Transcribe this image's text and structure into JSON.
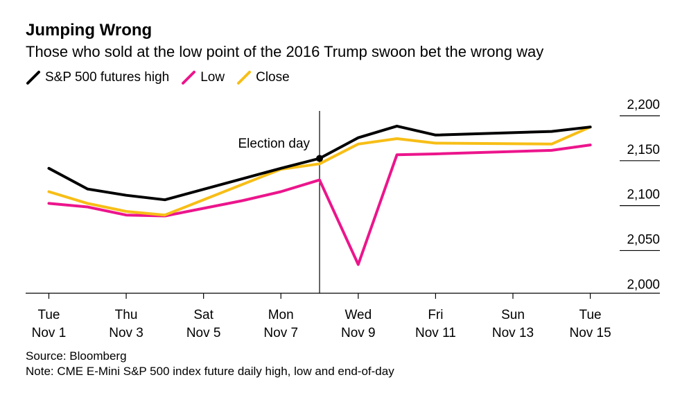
{
  "chart_data": {
    "type": "line",
    "title": "Jumping Wrong",
    "subtitle": "Those who sold at the low point of the 2016 Trump swoon bet the wrong way",
    "x_labels": [
      {
        "day": "Tue",
        "date": "Nov 1"
      },
      {
        "day": "Thu",
        "date": "Nov 3"
      },
      {
        "day": "Sat",
        "date": "Nov 5"
      },
      {
        "day": "Mon",
        "date": "Nov 7"
      },
      {
        "day": "Wed",
        "date": "Nov 9"
      },
      {
        "day": "Fri",
        "date": "Nov 11"
      },
      {
        "day": "Sun",
        "date": "Nov 13"
      },
      {
        "day": "Tue",
        "date": "Nov 15"
      }
    ],
    "x_label_positions": [
      1,
      3,
      5,
      7,
      9,
      11,
      13,
      15
    ],
    "xlim": [
      0.4,
      16.8
    ],
    "ylim": [
      1984,
      2210
    ],
    "y_ticks": [
      2000,
      2050,
      2100,
      2150,
      2200
    ],
    "y_tick_labels": [
      "2,000",
      "2,050",
      "2,100",
      "2,150",
      "2,200"
    ],
    "series": [
      {
        "name": "S&P 500 futures high",
        "color": "#000000",
        "x": [
          1,
          2,
          3,
          4,
          7,
          8,
          9,
          10,
          11,
          14,
          15
        ],
        "y": [
          2123,
          2100,
          2093,
          2088,
          2123,
          2134,
          2157,
          2170,
          2160,
          2164,
          2169
        ]
      },
      {
        "name": "Low",
        "color": "#ec158c",
        "x": [
          1,
          2,
          3,
          4,
          6,
          7,
          8,
          9,
          10,
          11,
          14,
          15
        ],
        "y": [
          2084,
          2080,
          2071,
          2070,
          2087,
          2097,
          2110,
          2016,
          2138,
          2139,
          2143,
          2149
        ]
      },
      {
        "name": "Close",
        "color": "#f7be16",
        "x": [
          1,
          2,
          3,
          4,
          7,
          8,
          9,
          10,
          11,
          14,
          15
        ],
        "y": [
          2097,
          2084,
          2075,
          2071,
          2122,
          2128,
          2150,
          2156,
          2151,
          2150,
          2169
        ]
      }
    ],
    "annotation": {
      "label": "Election day",
      "x": 8,
      "marker_y": 2134
    },
    "grid": false,
    "legend_position": "top-left"
  },
  "source": "Source: Bloomberg",
  "note": "Note: CME E-Mini S&P 500 index future daily high, low and end-of-day"
}
